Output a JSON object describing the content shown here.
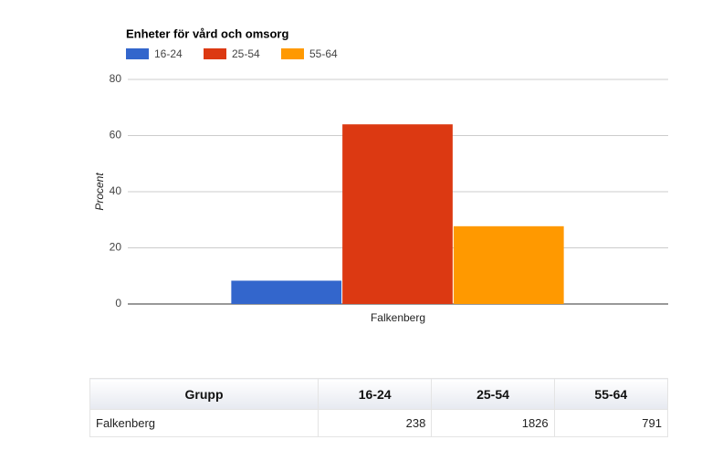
{
  "chart_data": {
    "type": "bar",
    "title": "Enheter för vård och omsorg",
    "y_label": "Procent",
    "categories": [
      "Falkenberg"
    ],
    "series": [
      {
        "name": "16-24",
        "color": "#3366cc",
        "values": [
          8.3
        ]
      },
      {
        "name": "25-54",
        "color": "#dc3912",
        "values": [
          64
        ]
      },
      {
        "name": "55-64",
        "color": "#ff9900",
        "values": [
          27.7
        ]
      }
    ],
    "ylim": [
      0,
      80
    ],
    "yticks": [
      0,
      20,
      40,
      60,
      80
    ],
    "grid": true,
    "legend": "top"
  },
  "table": {
    "columns": [
      "Grupp",
      "16-24",
      "25-54",
      "55-64"
    ],
    "rows": [
      [
        "Falkenberg",
        238,
        1826,
        791
      ]
    ]
  }
}
